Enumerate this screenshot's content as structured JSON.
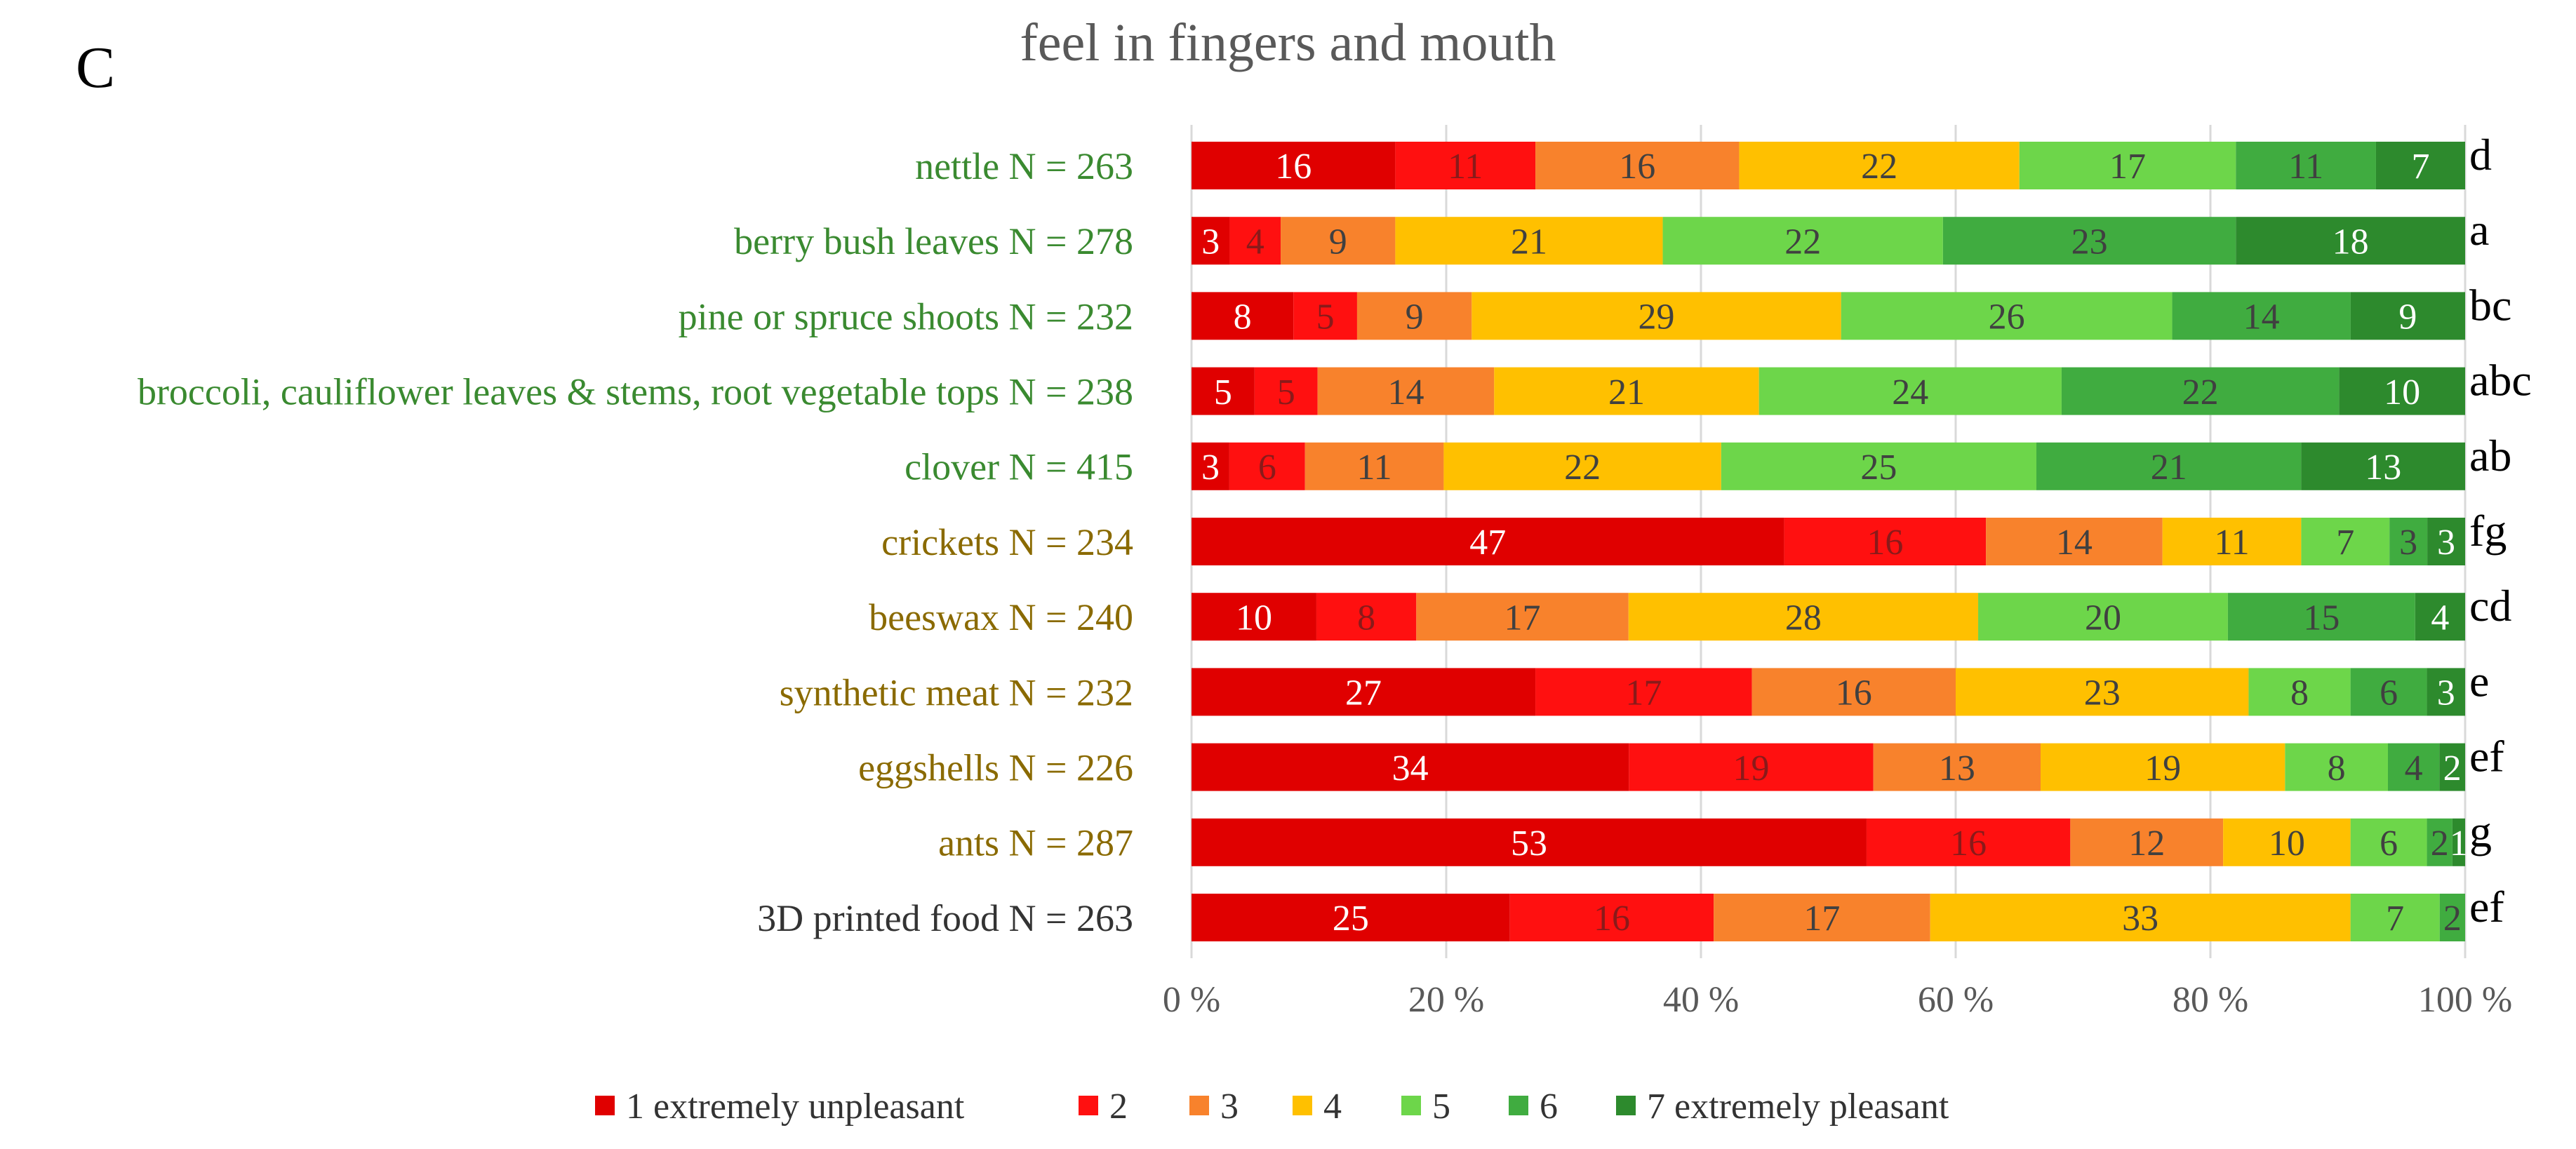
{
  "panel_label": "C",
  "colors": {
    "c1": "#e00000",
    "c2": "#ff1010",
    "c3": "#f8822c",
    "c4": "#ffc000",
    "c5": "#6dd64a",
    "c6": "#40ac40",
    "c7": "#2d8a2d",
    "plant_label": "#3a8a30",
    "insect_label": "#8a6a00",
    "other_label": "#333333",
    "axis_text": "#595959",
    "grid": "#d9d9d9"
  },
  "chart_data": {
    "type": "bar",
    "orientation": "horizontal",
    "stacked": true,
    "title": "feel in fingers and mouth",
    "xlabel": "",
    "ylabel": "",
    "xlim": [
      0,
      100
    ],
    "x_ticks": [
      "0 %",
      "20 %",
      "40 %",
      "60 %",
      "80 %",
      "100 %"
    ],
    "grid": true,
    "legend_position": "bottom",
    "series_names": [
      "1 extremely unpleasant",
      "2",
      "3",
      "4",
      "5",
      "6",
      "7 extremely pleasant"
    ],
    "series_colors": [
      "#e00000",
      "#ff1010",
      "#f8822c",
      "#ffc000",
      "#6dd64a",
      "#40ac40",
      "#2d8a2d"
    ],
    "categories": [
      {
        "label": "nettle N = 263",
        "group": "plant",
        "letter": "d",
        "values": [
          16,
          11,
          16,
          22,
          17,
          11,
          7
        ]
      },
      {
        "label": "berry bush leaves N = 278",
        "group": "plant",
        "letter": "a",
        "values": [
          3,
          4,
          9,
          21,
          22,
          23,
          18
        ]
      },
      {
        "label": "pine or spruce shoots N = 232",
        "group": "plant",
        "letter": "bc",
        "values": [
          8,
          5,
          9,
          29,
          26,
          14,
          9
        ]
      },
      {
        "label": "broccoli, cauliflower leaves & stems, root vegetable tops N = 238",
        "group": "plant",
        "letter": "abc",
        "values": [
          5,
          5,
          14,
          21,
          24,
          22,
          10
        ]
      },
      {
        "label": "clover N = 415",
        "group": "plant",
        "letter": "ab",
        "values": [
          3,
          6,
          11,
          22,
          25,
          21,
          13
        ]
      },
      {
        "label": "crickets N = 234",
        "group": "insect",
        "letter": "fg",
        "values": [
          47,
          16,
          14,
          11,
          7,
          3,
          3
        ]
      },
      {
        "label": "beeswax N = 240",
        "group": "insect",
        "letter": "cd",
        "values": [
          10,
          8,
          17,
          28,
          20,
          15,
          4
        ]
      },
      {
        "label": "synthetic meat N = 232",
        "group": "insect",
        "letter": "e",
        "values": [
          27,
          17,
          16,
          23,
          8,
          6,
          3
        ]
      },
      {
        "label": "eggshells N = 226",
        "group": "insect",
        "letter": "ef",
        "values": [
          34,
          19,
          13,
          19,
          8,
          4,
          2
        ]
      },
      {
        "label": "ants N = 287",
        "group": "insect",
        "letter": "g",
        "values": [
          53,
          16,
          12,
          10,
          6,
          2,
          1
        ]
      },
      {
        "label": "3D printed food N = 263",
        "group": "other",
        "letter": "ef",
        "values": [
          25,
          16,
          17,
          33,
          7,
          2,
          0
        ]
      }
    ],
    "value_label_colors": [
      "#ffffff",
      "#8a1a1a",
      "#404040",
      "#404040",
      "#404040",
      "#404040",
      "#ffffff"
    ]
  }
}
